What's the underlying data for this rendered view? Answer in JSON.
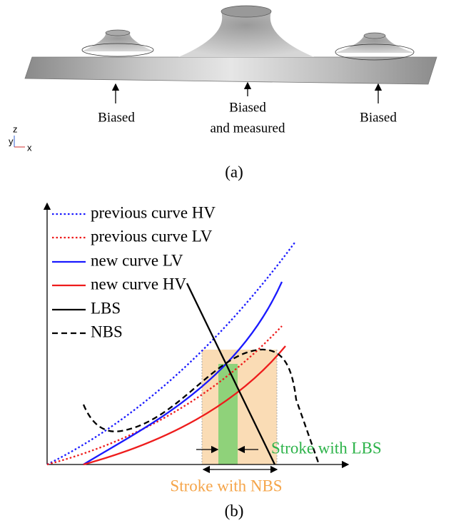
{
  "panel_a": {
    "labels": [
      [
        "Biased"
      ],
      [
        "Biased",
        "and measured"
      ],
      [
        "Biased"
      ]
    ],
    "axes": {
      "z": "z",
      "y": "y",
      "x": "x"
    },
    "caption": "(a)"
  },
  "panel_b": {
    "legend": [
      "previous curve HV",
      "previous curve LV",
      "new curve LV",
      "new curve HV",
      "LBS",
      "NBS"
    ],
    "annotations": {
      "lbs": "Stroke with LBS",
      "nbs": "Stroke with NBS"
    },
    "caption": "(b)"
  }
}
